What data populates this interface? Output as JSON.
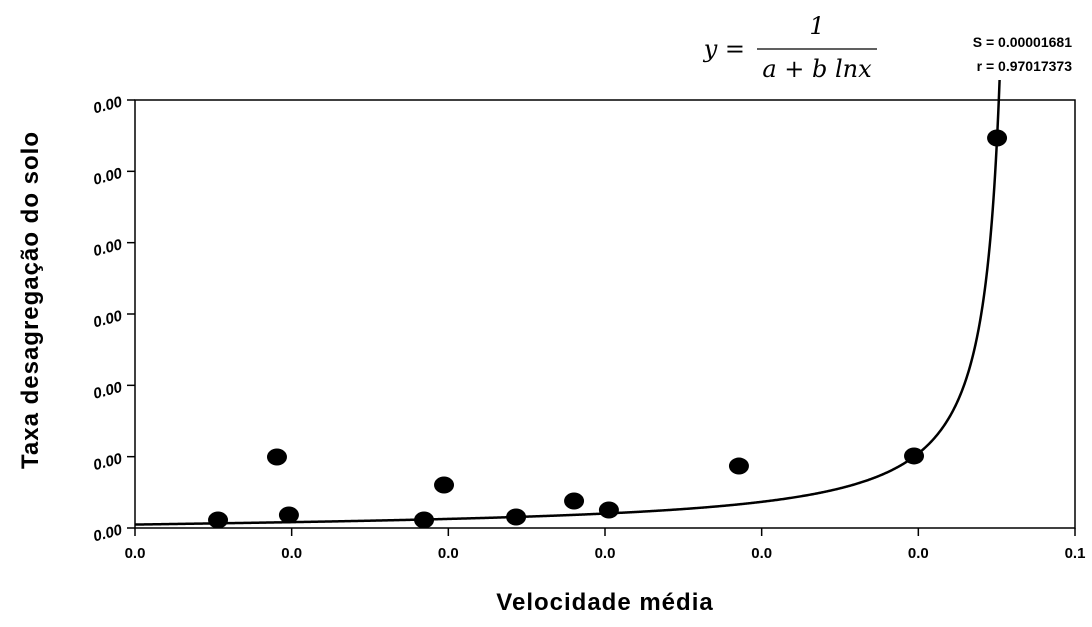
{
  "chart_data": {
    "type": "scatter",
    "xlabel": "Velocidade média",
    "ylabel": "Taxa desagregação do solo",
    "equation": {
      "lhs": "y =",
      "numerator": "1",
      "denominator": "a + b lnx"
    },
    "stats": [
      "S = 0.00001681",
      "r = 0.97017373"
    ],
    "x": [
      0.00924,
      0.01225,
      0.01286,
      0.01976,
      0.02078,
      0.02446,
      0.02742,
      0.0292,
      0.03584,
      0.04478,
      0.04902
    ],
    "values": [
      7.85e-05,
      0.000697,
      0.000128,
      7.85e-05,
      0.000422,
      0.000108,
      0.000265,
      0.000177,
      0.000608,
      0.000707,
      0.003827
    ],
    "color": "#000000",
    "fit": {
      "a": -38690,
      "b": -12917
    },
    "xlim": [
      0.005,
      0.053
    ],
    "xticks": [
      {
        "value": 0.005,
        "label": "0.0"
      },
      {
        "value": 0.013,
        "label": "0.0"
      },
      {
        "value": 0.021,
        "label": "0.0"
      },
      {
        "value": 0.029,
        "label": "0.0"
      },
      {
        "value": 0.037,
        "label": "0.0"
      },
      {
        "value": 0.045,
        "label": "0.0"
      },
      {
        "value": 0.053,
        "label": "0.1"
      }
    ],
    "ylim": [
      0,
      0.0042
    ],
    "yticks": [
      {
        "value": 0,
        "label": "0.00"
      },
      {
        "value": 0.0007,
        "label": "0.00"
      },
      {
        "value": 0.0014,
        "label": "0.00"
      },
      {
        "value": 0.0021,
        "label": "0.00"
      },
      {
        "value": 0.0028,
        "label": "0.00"
      },
      {
        "value": 0.0035,
        "label": "0.00"
      },
      {
        "value": 0.0042,
        "label": "0.00"
      }
    ]
  }
}
